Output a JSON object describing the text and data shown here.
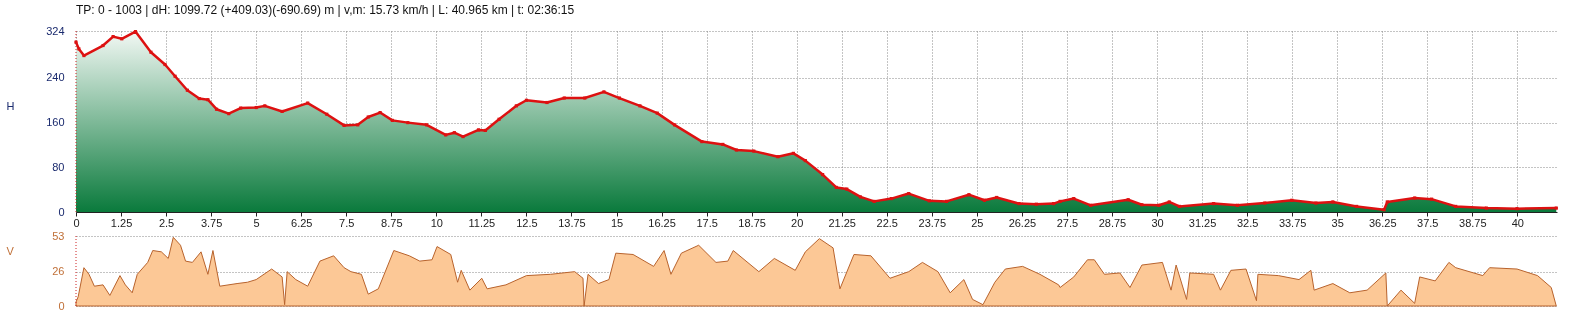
{
  "chart_data": [
    {
      "type": "area",
      "title": "TP: 0 - 1003 | dH: 1099.72  (+409.03)(-690.69) m | v,m: 15.73 km/h | L: 40.965 km | t: 02:36:15",
      "ylabel": "H",
      "x": [
        0,
        0.08,
        0.22,
        0.75,
        1.03,
        1.27,
        1.65,
        2.08,
        2.47,
        2.75,
        3.09,
        3.42,
        3.66,
        3.9,
        4.24,
        4.57,
        5.0,
        5.24,
        5.72,
        6.43,
        6.96,
        7.44,
        7.82,
        8.11,
        8.44,
        8.78,
        9.21,
        9.73,
        10.26,
        10.5,
        10.74,
        11.17,
        11.36,
        11.74,
        12.22,
        12.5,
        13.07,
        13.55,
        14.12,
        14.65,
        15.08,
        15.65,
        16.13,
        16.61,
        17.37,
        17.95,
        18.33,
        18.81,
        19.48,
        19.91,
        20.24,
        20.72,
        21.1,
        21.39,
        21.77,
        22.15,
        22.63,
        23.11,
        23.68,
        24.16,
        24.78,
        25.21,
        25.55,
        26.17,
        26.65,
        27.13,
        27.31,
        27.69,
        28.16,
        29.2,
        29.58,
        30.05,
        30.34,
        30.62,
        31.57,
        32.23,
        32.99,
        33.74,
        34.41,
        34.88,
        35.54,
        36.3,
        36.39,
        37.15,
        37.62,
        38.29,
        39.14,
        39.99,
        41.08
      ],
      "series": [
        {
          "color": "#dd1111",
          "values": [
            304,
            292,
            280,
            298,
            314,
            310,
            323,
            286,
            264,
            243,
            218,
            203,
            201,
            184,
            176,
            186,
            187,
            190,
            180,
            195,
            175,
            155,
            156,
            170,
            178,
            164,
            160,
            156,
            138,
            142,
            135,
            147,
            146,
            166,
            190,
            200,
            196,
            204,
            204,
            215,
            204,
            190,
            177,
            156,
            126,
            121,
            111,
            109,
            99,
            105,
            92,
            67,
            44,
            41,
            27,
            19,
            24,
            33,
            20,
            19,
            31,
            21,
            26,
            15,
            14,
            15,
            19,
            24,
            12,
            22,
            13,
            12,
            18,
            10,
            15,
            12,
            16,
            21,
            16,
            18,
            10,
            4,
            18,
            25,
            23,
            10,
            7,
            6,
            7
          ]
        }
      ],
      "xlim": [
        0,
        41.1
      ],
      "ylim": [
        0,
        324
      ],
      "xticks": [
        0,
        1.25,
        2.5,
        3.75,
        5,
        6.25,
        7.5,
        8.75,
        10,
        11.25,
        12.5,
        13.75,
        15,
        16.25,
        17.5,
        18.75,
        20,
        21.25,
        22.5,
        23.75,
        25,
        26.25,
        27.5,
        28.75,
        30,
        31.25,
        32.5,
        33.75,
        35,
        36.25,
        37.5,
        38.75,
        40
      ],
      "yticks": [
        0,
        80,
        160,
        240,
        324
      ],
      "grid": true,
      "marker": "square",
      "ref_lines": [
        {
          "axis": "x",
          "value": 0,
          "color": "#cc2222",
          "line_style": "dotted"
        }
      ]
    },
    {
      "type": "area",
      "ylabel": "V",
      "x": [
        0,
        0.06,
        0.22,
        0.36,
        0.51,
        0.75,
        0.94,
        1.22,
        1.37,
        1.56,
        1.7,
        1.99,
        2.13,
        2.37,
        2.56,
        2.7,
        2.9,
        3.04,
        3.23,
        3.47,
        3.66,
        3.8,
        3.99,
        4.47,
        4.76,
        5.0,
        5.43,
        5.72,
        5.79,
        5.86,
        6.1,
        6.43,
        6.77,
        7.15,
        7.44,
        7.63,
        7.92,
        8.11,
        8.39,
        8.82,
        9.25,
        9.54,
        9.88,
        10.02,
        10.4,
        10.59,
        10.69,
        10.93,
        11.26,
        11.41,
        11.93,
        12.5,
        13.17,
        13.84,
        14.07,
        14.1,
        14.21,
        14.5,
        14.79,
        14.98,
        15.46,
        16.03,
        16.32,
        16.51,
        16.8,
        17.28,
        17.76,
        18.09,
        18.24,
        18.95,
        19.38,
        19.96,
        20.24,
        20.63,
        21.01,
        21.2,
        21.59,
        22.06,
        22.59,
        23.11,
        23.49,
        23.92,
        24.26,
        24.64,
        24.88,
        25.17,
        25.5,
        25.79,
        26.27,
        26.75,
        27.27,
        27.31,
        27.69,
        28.07,
        28.26,
        28.54,
        28.97,
        29.25,
        29.58,
        30.15,
        30.39,
        30.53,
        30.82,
        30.91,
        31.57,
        31.76,
        32.05,
        32.47,
        32.76,
        32.8,
        33.37,
        33.94,
        34.27,
        34.36,
        34.88,
        35.35,
        35.83,
        36.35,
        36.39,
        36.77,
        37.15,
        37.29,
        37.72,
        38.1,
        38.29,
        39.04,
        39.23,
        39.99,
        40.56,
        40.94,
        41.08
      ],
      "series": [
        {
          "color": "#fcc896",
          "values": [
            3,
            7,
            29,
            24,
            15,
            16,
            8,
            23,
            16,
            10,
            24,
            33,
            42,
            41,
            36,
            52,
            46,
            34,
            33,
            41,
            24,
            42,
            15,
            17,
            18,
            20,
            28,
            22,
            1,
            26,
            20,
            15,
            34,
            38,
            29,
            26,
            24,
            9,
            13,
            42,
            38,
            34,
            35,
            45,
            39,
            18,
            27,
            12,
            21,
            13,
            16,
            23,
            24,
            26,
            21,
            0,
            24,
            17,
            20,
            40,
            39,
            30,
            42,
            24,
            40,
            46,
            33,
            34,
            42,
            26,
            36,
            27,
            41,
            51,
            44,
            13,
            39,
            38,
            21,
            26,
            33,
            26,
            10,
            20,
            5,
            1,
            18,
            28,
            30,
            24,
            16,
            14,
            22,
            35,
            35,
            24,
            25,
            14,
            31,
            33,
            12,
            31,
            5,
            25,
            24,
            12,
            27,
            28,
            4,
            24,
            23,
            20,
            27,
            12,
            17,
            10,
            12,
            25,
            0,
            12,
            2,
            22,
            19,
            33,
            29,
            23,
            29,
            28,
            23,
            14,
            0
          ]
        }
      ],
      "xlim": [
        0,
        41.1
      ],
      "ylim": [
        0,
        53
      ],
      "xticks": [
        0,
        1.25,
        2.5,
        3.75,
        5,
        6.25,
        7.5,
        8.75,
        10,
        11.25,
        12.5,
        13.75,
        15,
        16.25,
        17.5,
        18.75,
        20,
        21.25,
        22.5,
        23.75,
        25,
        26.25,
        27.5,
        28.75,
        30,
        31.25,
        32.5,
        33.75,
        35,
        36.25,
        37.5,
        38.75,
        40
      ],
      "yticks": [
        0,
        26,
        53
      ],
      "grid": "y",
      "tick_labels": "y",
      "ref_lines": [
        {
          "axis": "x",
          "value": 0,
          "color": "#cc2222",
          "line_style": "dotted"
        }
      ]
    }
  ]
}
